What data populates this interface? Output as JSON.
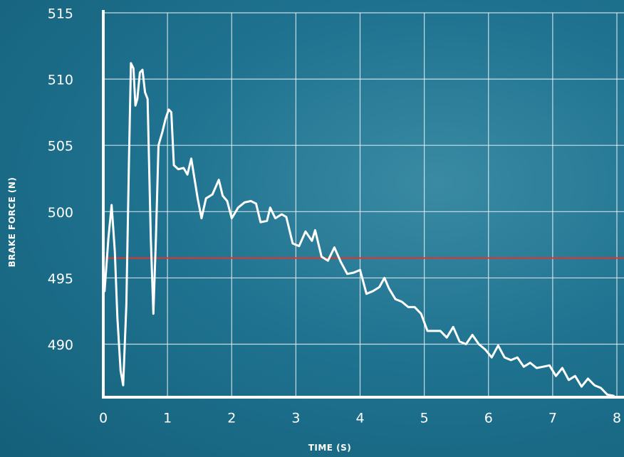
{
  "chart_data": {
    "type": "line",
    "x_label": "TIME (S)",
    "y_label": "BRAKE FORCE (N)",
    "xlim": [
      0,
      8
    ],
    "ylim": [
      486,
      515
    ],
    "xticks": [
      0,
      1,
      2,
      3,
      4,
      5,
      6,
      7,
      8
    ],
    "yticks": [
      490,
      495,
      500,
      505,
      510,
      515
    ],
    "grid": true,
    "reference_line": {
      "value": 496.5,
      "color": "#e0342c"
    },
    "x": [
      0.02,
      0.08,
      0.13,
      0.18,
      0.22,
      0.27,
      0.31,
      0.36,
      0.4,
      0.43,
      0.47,
      0.5,
      0.53,
      0.57,
      0.61,
      0.65,
      0.69,
      0.74,
      0.78,
      0.82,
      0.86,
      0.92,
      0.97,
      1.02,
      1.06,
      1.1,
      1.17,
      1.25,
      1.31,
      1.37,
      1.42,
      1.47,
      1.53,
      1.6,
      1.7,
      1.8,
      1.86,
      1.93,
      2.0,
      2.1,
      2.2,
      2.3,
      2.38,
      2.45,
      2.55,
      2.6,
      2.68,
      2.78,
      2.85,
      2.95,
      3.05,
      3.15,
      3.25,
      3.3,
      3.4,
      3.5,
      3.6,
      3.7,
      3.8,
      3.9,
      4.0,
      4.1,
      4.2,
      4.3,
      4.38,
      4.45,
      4.55,
      4.65,
      4.75,
      4.85,
      4.95,
      5.05,
      5.15,
      5.25,
      5.35,
      5.45,
      5.55,
      5.65,
      5.75,
      5.85,
      5.95,
      6.05,
      6.15,
      6.25,
      6.35,
      6.45,
      6.55,
      6.65,
      6.75,
      6.85,
      6.95,
      7.05,
      7.15,
      7.25,
      7.35,
      7.45,
      7.55,
      7.65,
      7.75,
      7.85,
      7.95
    ],
    "series": [
      {
        "color": "#ffffff",
        "values": [
          494,
          498,
          500.5,
          497,
          492,
          488,
          486.9,
          493,
          504,
          511.2,
          510.8,
          508,
          508.5,
          510.5,
          510.7,
          509,
          508.5,
          498,
          492.3,
          498,
          505,
          506,
          507,
          507.7,
          507.5,
          503.5,
          503.2,
          503.3,
          502.8,
          504,
          502.5,
          501,
          499.5,
          501,
          501.3,
          502.4,
          501.2,
          500.8,
          499.5,
          500.3,
          500.7,
          500.8,
          500.6,
          499.2,
          499.3,
          500.3,
          499.5,
          499.8,
          499.6,
          497.6,
          497.4,
          498.5,
          497.8,
          498.6,
          496.6,
          496.3,
          497.3,
          496.2,
          495.3,
          495.4,
          495.6,
          493.8,
          494.0,
          494.3,
          495.0,
          494.2,
          493.4,
          493.2,
          492.8,
          492.8,
          492.3,
          491.0,
          491.0,
          491.0,
          490.5,
          491.3,
          490.2,
          490.0,
          490.7,
          490.0,
          489.6,
          489.0,
          489.9,
          489.0,
          488.8,
          489.0,
          488.3,
          488.6,
          488.2,
          488.3,
          488.4,
          487.6,
          488.2,
          487.3,
          487.6,
          486.8,
          487.4,
          486.9,
          486.7,
          486.2,
          486.1
        ]
      }
    ]
  }
}
